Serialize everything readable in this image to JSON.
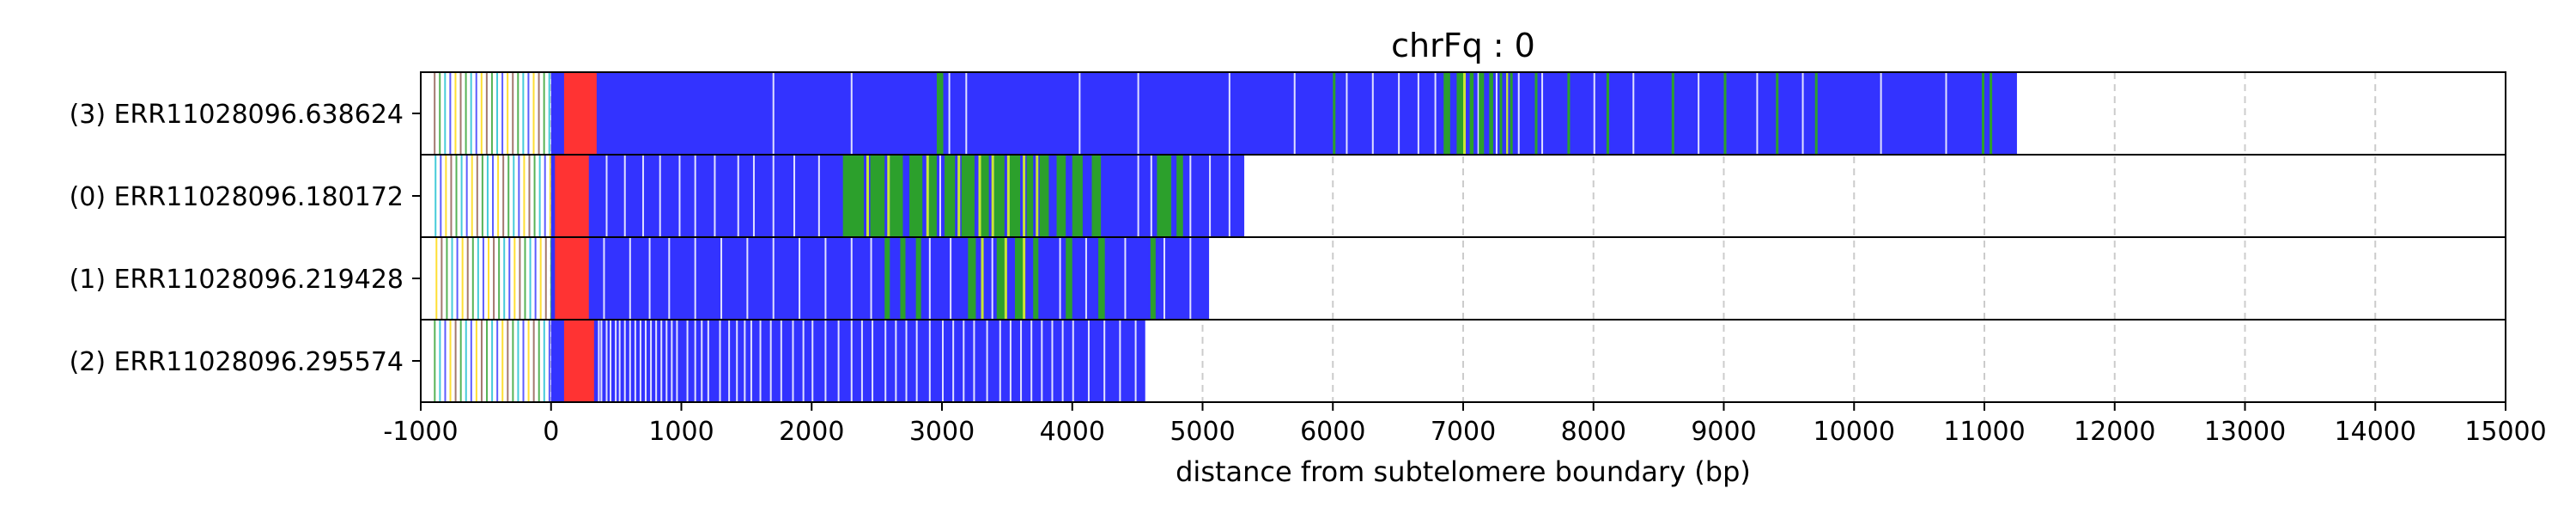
{
  "chart_data": {
    "type": "heatmap",
    "title": "chrFq : 0",
    "xlabel": "distance from subtelomere boundary (bp)",
    "ylabel": "",
    "xlim": [
      -1000,
      15000
    ],
    "xticks": [
      -1000,
      0,
      1000,
      2000,
      3000,
      4000,
      5000,
      6000,
      7000,
      8000,
      9000,
      10000,
      11000,
      12000,
      13000,
      14000,
      15000
    ],
    "xtick_labels": [
      "-1000",
      "0",
      "1000",
      "2000",
      "3000",
      "4000",
      "5000",
      "6000",
      "7000",
      "8000",
      "9000",
      "10000",
      "11000",
      "12000",
      "13000",
      "14000",
      "15000"
    ],
    "grid": "vertical dashed",
    "colors": {
      "telomere_repeat": "#3333ff",
      "subtelomere_block": "#ff3333",
      "variant_repeat_green": "#2ca02c",
      "variant_repeat_yellow": "#c8e632",
      "variant_repeat_cyan": "#17becf",
      "other_mark_brown": "#8c564b",
      "gap_white": "#ffffff",
      "grid": "#cccccc",
      "frame": "#000000"
    },
    "reads": [
      {
        "label": "(3) ERR11028096.638624",
        "start": 0,
        "end": 11250,
        "red_block": [
          100,
          350
        ],
        "green_bands": [
          [
            2960,
            3010
          ],
          [
            6000,
            6020
          ],
          [
            6850,
            6900
          ],
          [
            6950,
            7000
          ],
          [
            7050,
            7080
          ],
          [
            7120,
            7160
          ],
          [
            7200,
            7230
          ],
          [
            7280,
            7300
          ],
          [
            7360,
            7380
          ],
          [
            7550,
            7570
          ],
          [
            7800,
            7820
          ],
          [
            8100,
            8120
          ],
          [
            8600,
            8620
          ],
          [
            9000,
            9020
          ],
          [
            9400,
            9420
          ],
          [
            9700,
            9720
          ],
          [
            10980,
            11000
          ],
          [
            11040,
            11060
          ]
        ],
        "yellow_bands": [
          [
            7000,
            7020
          ],
          [
            7330,
            7345
          ]
        ],
        "white_gaps": [
          1700,
          2300,
          3050,
          3180,
          4050,
          4500,
          5200,
          5700,
          6100,
          6300,
          6500,
          6650,
          6780,
          7110,
          7250,
          7420,
          7600,
          8000,
          8300,
          8800,
          9250,
          9600,
          10200,
          10700
        ]
      },
      {
        "label": "(0) ERR11028096.180172",
        "start": 0,
        "end": 5320,
        "red_block": [
          30,
          290
        ],
        "green_bands": [
          [
            2240,
            2400
          ],
          [
            2450,
            2560
          ],
          [
            2600,
            2700
          ],
          [
            2750,
            2850
          ],
          [
            2900,
            2960
          ],
          [
            3020,
            3100
          ],
          [
            3150,
            3250
          ],
          [
            3300,
            3360
          ],
          [
            3400,
            3480
          ],
          [
            3520,
            3600
          ],
          [
            3650,
            3700
          ],
          [
            3750,
            3820
          ],
          [
            3880,
            3950
          ],
          [
            4000,
            4080
          ],
          [
            4150,
            4220
          ],
          [
            4650,
            4760
          ],
          [
            4800,
            4850
          ]
        ],
        "yellow_bands": [
          [
            2420,
            2440
          ],
          [
            2580,
            2600
          ],
          [
            2880,
            2900
          ],
          [
            3120,
            3140
          ],
          [
            3280,
            3300
          ],
          [
            3380,
            3400
          ],
          [
            3500,
            3520
          ],
          [
            3620,
            3640
          ],
          [
            3720,
            3740
          ]
        ],
        "white_gaps": [
          420,
          560,
          700,
          830,
          980,
          1100,
          1250,
          1430,
          1550,
          1700,
          1860,
          2050,
          2980,
          3230,
          4500,
          4600,
          4900,
          5050,
          5200
        ]
      },
      {
        "label": "(1) ERR11028096.219428",
        "start": 0,
        "end": 5050,
        "red_block": [
          30,
          290
        ],
        "green_bands": [
          [
            2560,
            2600
          ],
          [
            2680,
            2720
          ],
          [
            2800,
            2840
          ],
          [
            3200,
            3260
          ],
          [
            3420,
            3480
          ],
          [
            3560,
            3620
          ],
          [
            3700,
            3740
          ],
          [
            3950,
            4000
          ],
          [
            4200,
            4250
          ],
          [
            4600,
            4640
          ]
        ],
        "yellow_bands": [
          [
            3300,
            3320
          ],
          [
            3480,
            3500
          ],
          [
            3620,
            3640
          ]
        ],
        "white_gaps": [
          400,
          600,
          750,
          900,
          1100,
          1300,
          1500,
          1700,
          1900,
          2100,
          2300,
          2450,
          2900,
          3060,
          3380,
          3900,
          4100,
          4400,
          4700,
          4900
        ]
      },
      {
        "label": "(2) ERR11028096.295574",
        "start": 0,
        "end": 4560,
        "red_block": [
          100,
          330
        ],
        "green_bands": [],
        "yellow_bands": [],
        "white_gaps": [
          360,
          380,
          420,
          450,
          490,
          520,
          560,
          600,
          640,
          680,
          720,
          760,
          800,
          840,
          880,
          920,
          960,
          1040,
          1100,
          1150,
          1200,
          1290,
          1360,
          1420,
          1480,
          1530,
          1600,
          1680,
          1760,
          1850,
          1930,
          2000,
          2100,
          2200,
          2300,
          2380,
          2460,
          2560,
          2640,
          2720,
          2800,
          2900,
          3000,
          3080,
          3160,
          3240,
          3340,
          3440,
          3520,
          3600,
          3680,
          3760,
          3840,
          3920,
          4000,
          4120,
          4240,
          4360,
          4480
        ]
      }
    ],
    "pre_boundary_marks": {
      "colors": [
        "#8c564b",
        "#2ca02c",
        "#17becf",
        "#3333ff",
        "#ffd700"
      ],
      "positions": [
        -900,
        -860,
        -820,
        -780,
        -740,
        -700,
        -660,
        -620,
        -580,
        -540,
        -500,
        -460,
        -420,
        -380,
        -340,
        -300,
        -260,
        -220,
        -180,
        -140,
        -100,
        -60,
        -20
      ]
    }
  }
}
